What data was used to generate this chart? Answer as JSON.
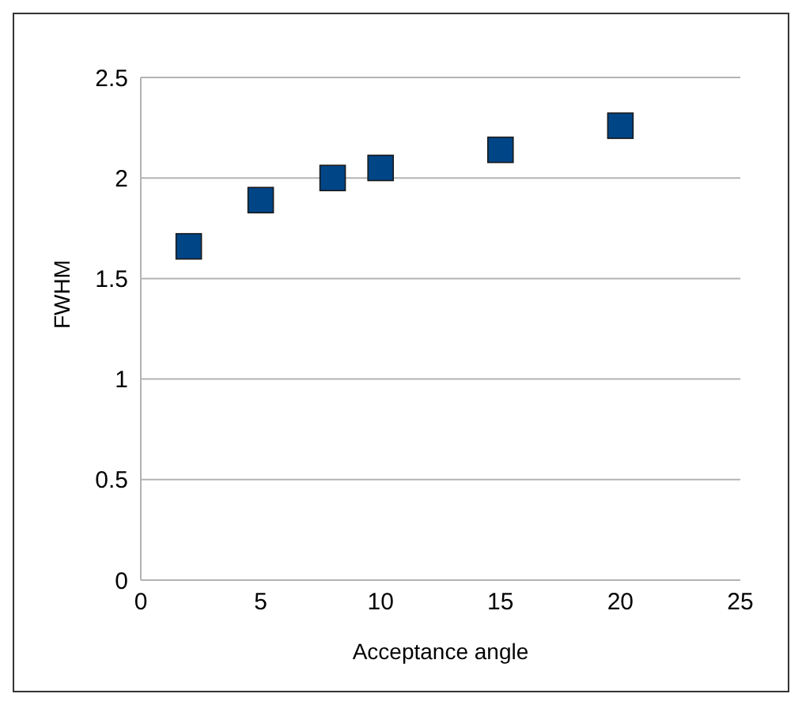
{
  "chart_data": {
    "type": "scatter",
    "xlabel": "Acceptance angle",
    "ylabel": "FWHM",
    "x": [
      2,
      5,
      8,
      10,
      15,
      20
    ],
    "series": [
      {
        "color": "#004586",
        "values": [
          1.66,
          1.89,
          2.0,
          2.05,
          2.14,
          2.26
        ]
      }
    ],
    "xlim": [
      0,
      25
    ],
    "xticks": [
      0,
      5,
      10,
      15,
      20,
      25
    ],
    "ylim": [
      0,
      2.5
    ],
    "yticks": [
      0,
      0.5,
      1,
      1.5,
      2,
      2.5
    ],
    "grid": "y",
    "marker": "square",
    "legend": false
  }
}
